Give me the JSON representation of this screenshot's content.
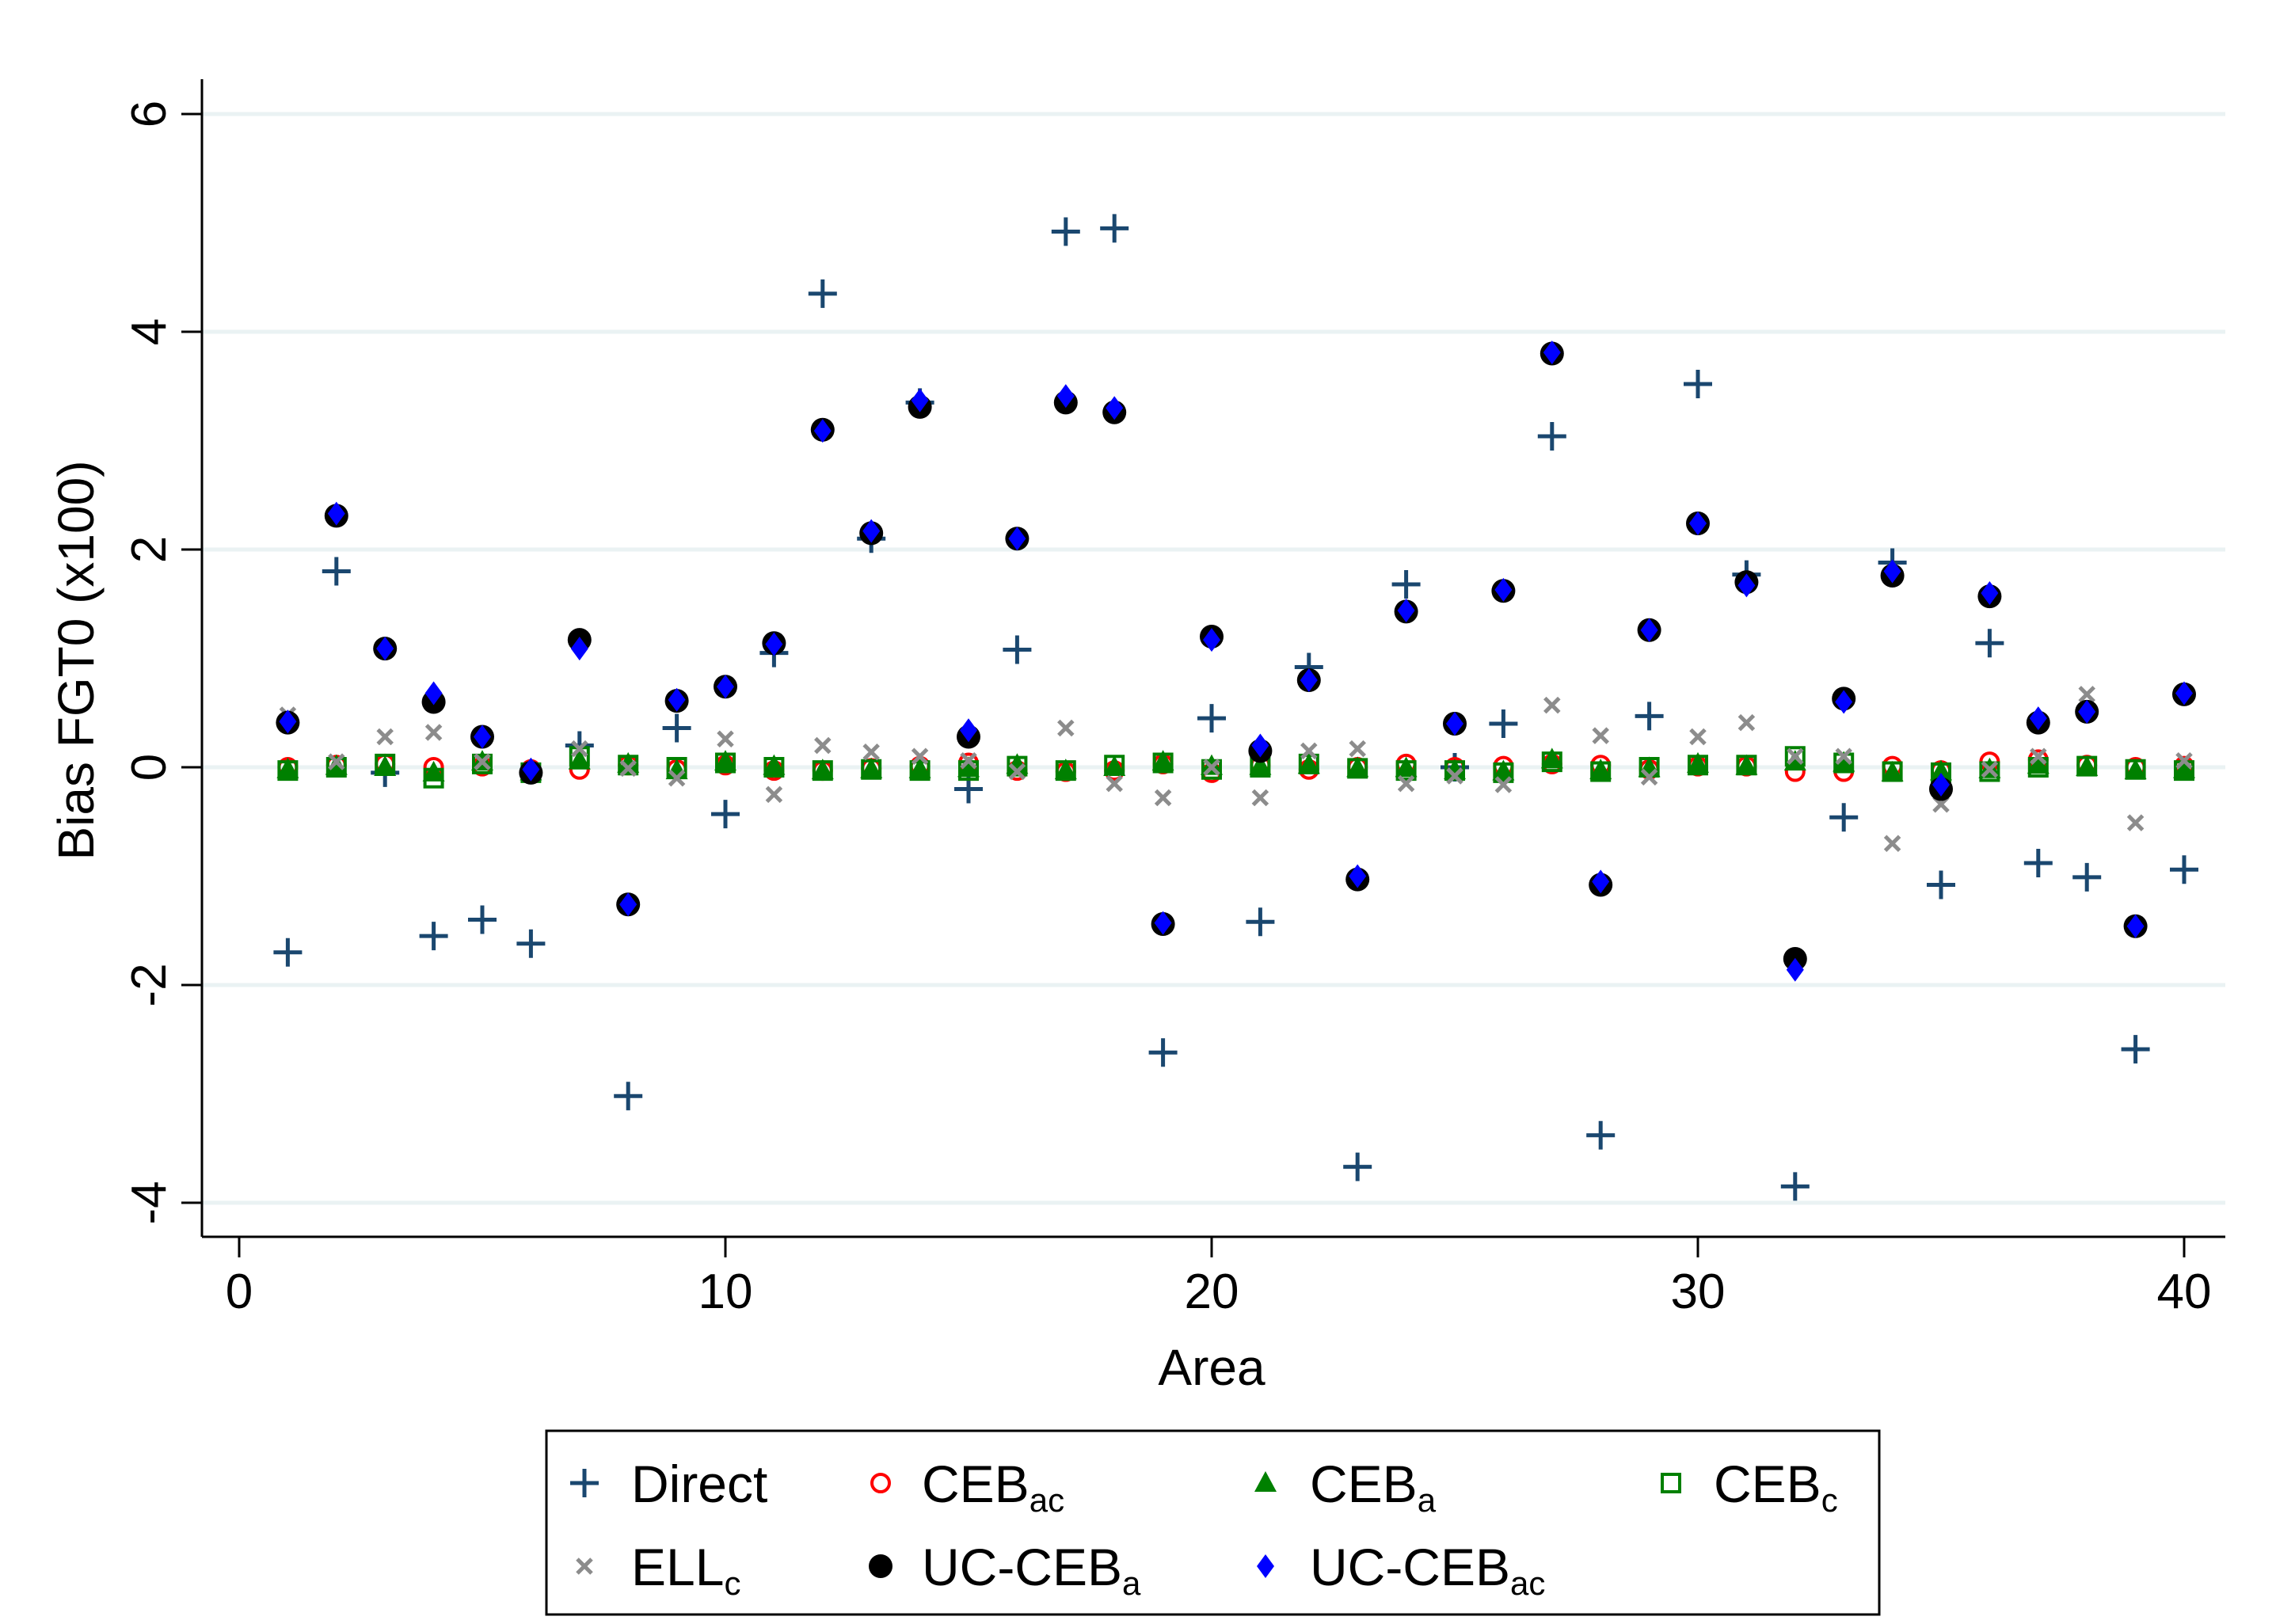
{
  "chart_data": {
    "type": "scatter",
    "xlabel": "Area",
    "ylabel": "Bias FGT0 (x100)",
    "xlim": [
      -0.8,
      40.8
    ],
    "ylim": [
      -4.3,
      6.3
    ],
    "x_ticks": [
      0,
      10,
      20,
      30,
      40
    ],
    "y_ticks": [
      -4,
      -2,
      0,
      2,
      4,
      6
    ],
    "grid": true,
    "legend_position": "bottom",
    "x": [
      1,
      2,
      3,
      4,
      5,
      6,
      7,
      8,
      9,
      10,
      11,
      12,
      13,
      14,
      15,
      16,
      17,
      18,
      19,
      20,
      21,
      22,
      23,
      24,
      25,
      26,
      27,
      28,
      29,
      30,
      31,
      32,
      33,
      34,
      35,
      36,
      37,
      38,
      39,
      40
    ],
    "series": [
      {
        "name": "Direct",
        "base": "Direct",
        "sub": "",
        "marker": "plus",
        "color": "#1a476f",
        "values": [
          -1.7,
          1.8,
          -0.05,
          -1.55,
          -1.4,
          -1.62,
          0.2,
          -3.02,
          0.36,
          -0.43,
          1.05,
          4.35,
          2.1,
          3.35,
          -0.2,
          1.08,
          4.92,
          4.95,
          -2.62,
          0.45,
          -1.42,
          0.92,
          -3.67,
          1.68,
          0.0,
          0.4,
          3.04,
          -3.38,
          0.47,
          3.52,
          1.77,
          -3.85,
          -0.46,
          1.88,
          -1.08,
          1.14,
          -0.88,
          -1.01,
          -2.59,
          -0.94
        ]
      },
      {
        "name": "CEBac",
        "base": "CEB",
        "sub": "ac",
        "marker": "circle-open",
        "color": "#ff0000",
        "values": [
          0.0,
          0.02,
          0.03,
          0.0,
          0.01,
          -0.02,
          -0.02,
          0.02,
          -0.02,
          0.02,
          -0.03,
          -0.03,
          -0.01,
          0.01,
          0.04,
          -0.03,
          -0.04,
          -0.03,
          0.03,
          -0.05,
          0.02,
          -0.02,
          0.0,
          0.03,
          0.0,
          0.01,
          0.03,
          0.02,
          -0.02,
          0.01,
          0.01,
          -0.04,
          -0.04,
          0.01,
          -0.03,
          0.05,
          0.07,
          0.02,
          0.0,
          0.01
        ]
      },
      {
        "name": "CEBa",
        "base": "CEB",
        "sub": "a",
        "marker": "triangle",
        "color": "#008000",
        "values": [
          -0.02,
          0.01,
          0.0,
          -0.05,
          0.05,
          -0.04,
          0.06,
          0.03,
          -0.03,
          0.05,
          0.01,
          -0.03,
          -0.02,
          -0.02,
          -0.01,
          0.02,
          -0.03,
          0.0,
          0.05,
          0.01,
          0.01,
          0.02,
          -0.01,
          -0.01,
          -0.03,
          -0.04,
          0.07,
          -0.03,
          -0.01,
          0.03,
          0.01,
          0.05,
          0.04,
          -0.05,
          -0.04,
          -0.02,
          0.02,
          0.0,
          -0.03,
          -0.02
        ]
      },
      {
        "name": "CEBc",
        "base": "CEB",
        "sub": "c",
        "marker": "square-open",
        "color": "#008000",
        "values": [
          -0.03,
          0.0,
          0.03,
          -0.1,
          0.03,
          -0.05,
          0.1,
          0.02,
          0.0,
          0.04,
          0.0,
          -0.03,
          -0.02,
          -0.03,
          -0.03,
          0.01,
          -0.03,
          0.02,
          0.04,
          -0.02,
          0.0,
          0.03,
          -0.01,
          -0.03,
          -0.03,
          -0.05,
          0.05,
          -0.04,
          0.0,
          0.02,
          0.02,
          0.1,
          0.04,
          -0.04,
          -0.05,
          -0.04,
          0.0,
          0.01,
          -0.02,
          -0.03
        ]
      },
      {
        "name": "ELLc",
        "base": "ELL",
        "sub": "c",
        "marker": "cross",
        "color": "#8c8c8c",
        "values": [
          0.48,
          0.05,
          0.28,
          0.32,
          0.05,
          -0.03,
          0.17,
          -0.01,
          -0.1,
          0.26,
          -0.25,
          0.2,
          0.14,
          0.1,
          0.06,
          -0.04,
          0.36,
          -0.15,
          -0.28,
          0.0,
          -0.28,
          0.15,
          0.17,
          -0.15,
          -0.08,
          -0.16,
          0.57,
          0.29,
          -0.09,
          0.28,
          0.41,
          0.1,
          0.1,
          -0.7,
          -0.34,
          -0.02,
          0.1,
          0.67,
          -0.51,
          0.06
        ]
      },
      {
        "name": "UC-CEBa",
        "base": "UC-CEB",
        "sub": "a",
        "marker": "circle-filled",
        "color": "#000000",
        "values": [
          0.41,
          2.31,
          1.09,
          0.6,
          0.28,
          -0.05,
          1.17,
          -1.26,
          0.61,
          0.74,
          1.14,
          3.1,
          2.15,
          3.31,
          0.28,
          2.1,
          3.35,
          3.26,
          -1.44,
          1.2,
          0.15,
          0.8,
          -1.03,
          1.43,
          0.4,
          1.62,
          3.8,
          -1.08,
          1.26,
          2.24,
          1.7,
          -1.76,
          0.63,
          1.76,
          -0.2,
          1.57,
          0.41,
          0.51,
          -1.46,
          0.67
        ]
      },
      {
        "name": "UC-CEBac",
        "base": "UC-CEB",
        "sub": "ac",
        "marker": "diamond",
        "color": "#0000ff",
        "values": [
          0.42,
          2.33,
          1.09,
          0.68,
          0.28,
          -0.02,
          1.09,
          -1.26,
          0.62,
          0.74,
          1.13,
          3.09,
          2.17,
          3.37,
          0.34,
          2.1,
          3.41,
          3.3,
          -1.43,
          1.17,
          0.2,
          0.8,
          -1.0,
          1.44,
          0.4,
          1.63,
          3.81,
          -1.05,
          1.26,
          2.24,
          1.67,
          -1.86,
          0.6,
          1.8,
          -0.16,
          1.6,
          0.45,
          0.51,
          -1.46,
          0.68
        ]
      }
    ]
  },
  "legend": [
    {
      "base": "Direct",
      "sub": ""
    },
    {
      "base": "CEB",
      "sub": "ac"
    },
    {
      "base": "CEB",
      "sub": "a"
    },
    {
      "base": "CEB",
      "sub": "c"
    },
    {
      "base": "ELL",
      "sub": "c"
    },
    {
      "base": "UC-CEB",
      "sub": "a"
    },
    {
      "base": "UC-CEB",
      "sub": "ac"
    }
  ]
}
